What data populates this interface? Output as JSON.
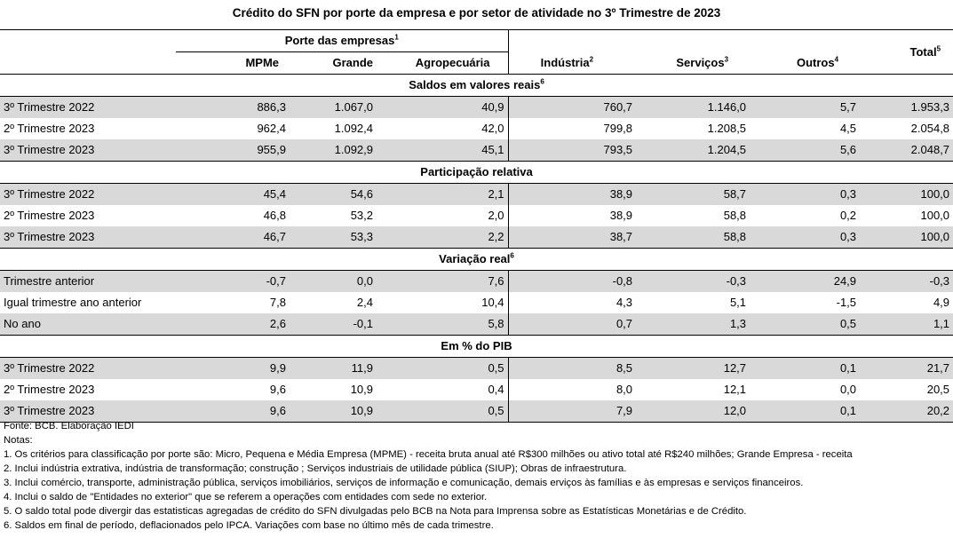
{
  "title": "Crédito do SFN  por porte da empresa e por setor de atividade no 3º Trimestre de 2023",
  "header": {
    "porte_group": "Porte das empresas",
    "porte_sup": "1",
    "columns": [
      "MPMe",
      "Grande",
      "Agropecuária",
      "Indústria",
      "Serviços",
      "Outros"
    ],
    "column_sups": [
      "",
      "",
      "",
      "2",
      "3",
      "4"
    ],
    "total": "Total",
    "total_sup": "5"
  },
  "sections": [
    {
      "title": "Saldos em valores reais",
      "sup": "6",
      "rows": [
        {
          "label": "3º Trimestre 2022",
          "values": [
            "886,3",
            "1.067,0",
            "40,9",
            "760,7",
            "1.146,0",
            "5,7",
            "1.953,3"
          ]
        },
        {
          "label": "2º Trimestre 2023",
          "values": [
            "962,4",
            "1.092,4",
            "42,0",
            "799,8",
            "1.208,5",
            "4,5",
            "2.054,8"
          ]
        },
        {
          "label": "3º Trimestre 2023",
          "values": [
            "955,9",
            "1.092,9",
            "45,1",
            "793,5",
            "1.204,5",
            "5,6",
            "2.048,7"
          ]
        }
      ]
    },
    {
      "title": "Participação relativa",
      "sup": "",
      "rows": [
        {
          "label": "3º Trimestre 2022",
          "values": [
            "45,4",
            "54,6",
            "2,1",
            "38,9",
            "58,7",
            "0,3",
            "100,0"
          ]
        },
        {
          "label": "2º Trimestre 2023",
          "values": [
            "46,8",
            "53,2",
            "2,0",
            "38,9",
            "58,8",
            "0,2",
            "100,0"
          ]
        },
        {
          "label": "3º Trimestre 2023",
          "values": [
            "46,7",
            "53,3",
            "2,2",
            "38,7",
            "58,8",
            "0,3",
            "100,0"
          ]
        }
      ]
    },
    {
      "title": "Variação real",
      "sup": "6",
      "rows": [
        {
          "label": "Trimestre anterior",
          "values": [
            "-0,7",
            "0,0",
            "7,6",
            "-0,8",
            "-0,3",
            "24,9",
            "-0,3"
          ]
        },
        {
          "label": "Igual trimestre ano anterior",
          "values": [
            "7,8",
            "2,4",
            "10,4",
            "4,3",
            "5,1",
            "-1,5",
            "4,9"
          ]
        },
        {
          "label": "No ano",
          "values": [
            "2,6",
            "-0,1",
            "5,8",
            "0,7",
            "1,3",
            "0,5",
            "1,1"
          ]
        }
      ]
    },
    {
      "title": "Em % do PIB",
      "sup": "",
      "rows": [
        {
          "label": "3º Trimestre 2022",
          "values": [
            "9,9",
            "11,9",
            "0,5",
            "8,5",
            "12,7",
            "0,1",
            "21,7"
          ]
        },
        {
          "label": "2º Trimestre 2023",
          "values": [
            "9,6",
            "10,9",
            "0,4",
            "8,0",
            "12,1",
            "0,0",
            "20,5"
          ]
        },
        {
          "label": "3º Trimestre 2023",
          "values": [
            "9,6",
            "10,9",
            "0,5",
            "7,9",
            "12,0",
            "0,1",
            "20,2"
          ]
        }
      ]
    }
  ],
  "notes": [
    "Fonte: BCB. Elaboração IEDI",
    "Notas:",
    "1.  Os critérios para classificação por porte são: Micro, Pequena e Média Empresa (MPME) - receita bruta anual até R$300 milhões ou ativo total até R$240 milhões; Grande Empresa - receita",
    "2.  Inclui indústria extrativa, indústria de transformação; construção ; Serviços industriais de utilidade pública (SIUP); Obras de infraestrutura.",
    "3. Inclui comércio, transporte, administração pública, serviços imobiliários, serviços de informação e comunicação, demais erviços às famílias  e às empresas e serviços financeiros.",
    "4. Inclui o saldo de \"Entidades no exterior\" que se referem a operações com entidades com sede no exterior.",
    "5. O saldo total pode divergir das estatisticas agregadas de crédito do SFN divulgadas pelo BCB na Nota para Imprensa sobre as Estatísticas Monetárias e de Crédito.",
    "6. Saldos em final de período, deflacionados pelo IPCA. Variações com base no último mês de cada trimestre."
  ]
}
